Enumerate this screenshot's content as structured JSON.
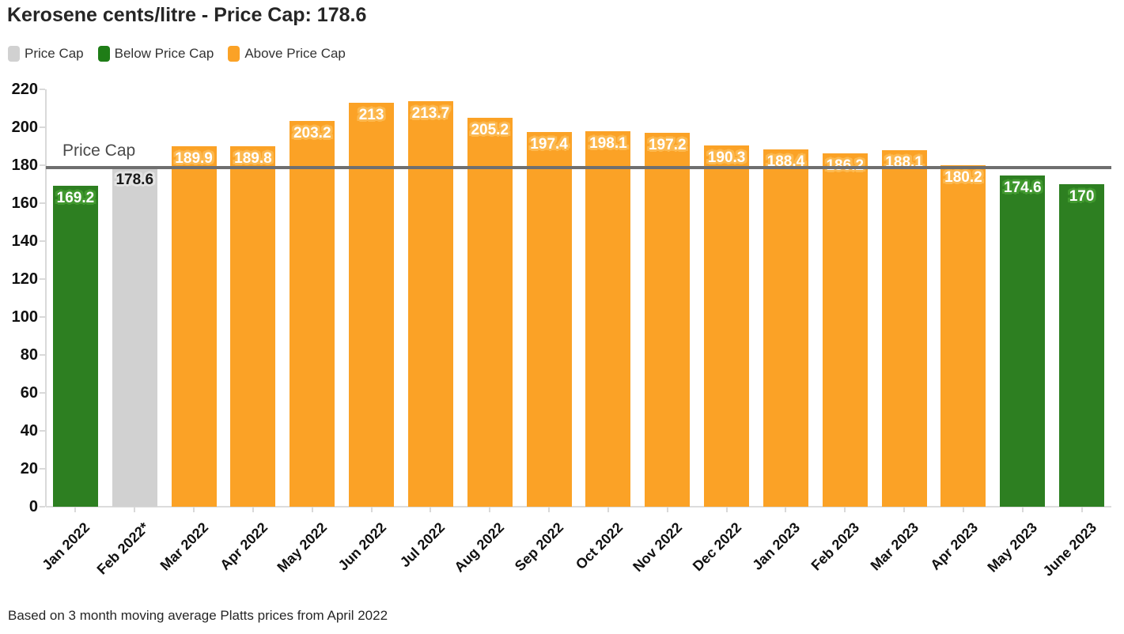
{
  "title": "Kerosene cents/litre - Price Cap: 178.6",
  "legend": {
    "items": [
      {
        "label": "Price Cap",
        "color": "#d1d1d1"
      },
      {
        "label": "Below Price Cap",
        "color": "#1f7d17"
      },
      {
        "label": "Above Price Cap",
        "color": "#fba226"
      }
    ]
  },
  "price_cap_annotation": "Price Cap",
  "footer": "Based on 3 month moving average Platts prices from April 2022",
  "chart_data": {
    "type": "bar",
    "title": "Kerosene cents/litre - Price Cap: 178.6",
    "categories": [
      "Jan 2022",
      "Feb 2022*",
      "Mar 2022",
      "Apr 2022",
      "May 2022",
      "Jun 2022",
      "Jul 2022",
      "Aug 2022",
      "Sep 2022",
      "Oct 2022",
      "Nov 2022",
      "Dec 2022",
      "Jan 2023",
      "Feb 2023",
      "Mar 2023",
      "Apr 2023",
      "May 2023",
      "June 2023"
    ],
    "values": [
      169.2,
      178.6,
      189.9,
      189.8,
      203.2,
      213,
      213.7,
      205.2,
      197.4,
      198.1,
      197.2,
      190.3,
      188.4,
      186.2,
      188.1,
      180.2,
      174.6,
      170
    ],
    "value_labels": [
      "169.2",
      "178.6",
      "189.9",
      "189.8",
      "203.2",
      "213",
      "213.7",
      "205.2",
      "197.4",
      "198.1",
      "197.2",
      "190.3",
      "188.4",
      "186.2",
      "188.1",
      "180.2",
      "174.6",
      "170"
    ],
    "statuses": [
      "below",
      "cap",
      "above",
      "above",
      "above",
      "above",
      "above",
      "above",
      "above",
      "above",
      "above",
      "above",
      "above",
      "above",
      "above",
      "above",
      "below",
      "below"
    ],
    "price_cap": 178.6,
    "price_cap_line_label": "Price Cap",
    "xlabel": "",
    "ylabel": "",
    "ylim": [
      0,
      220
    ],
    "yticks": [
      0,
      20,
      40,
      60,
      80,
      100,
      120,
      140,
      160,
      180,
      200,
      220
    ],
    "grid": false,
    "legend_position": "top-left",
    "colors": {
      "below": "#2d7f21",
      "cap": "#d1d1d1",
      "above": "#fba226",
      "halo_below": "#41992f",
      "halo_cap": "#e4e4e4",
      "halo_above": "#fcb84e",
      "cap_line": "#6f6f6f",
      "label_on_cap_bar": "#1a1a1a",
      "label_on_colored_bar": "#ffffff"
    }
  }
}
